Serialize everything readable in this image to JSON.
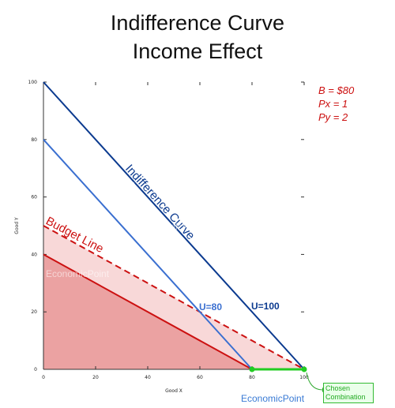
{
  "chart_data": {
    "type": "line",
    "title": "Indifference Curve",
    "subtitle": "Income Effect",
    "xlabel": "Good X",
    "ylabel": "Good Y",
    "xlim": [
      0,
      100
    ],
    "ylim": [
      0,
      100
    ],
    "xticks": [
      0,
      20,
      40,
      60,
      80,
      100
    ],
    "yticks": [
      0,
      20,
      40,
      60,
      80,
      100
    ],
    "series": [
      {
        "name": "Budget Line",
        "color": "#cc1111",
        "style": "solid",
        "x": [
          0,
          80
        ],
        "y": [
          40,
          0
        ]
      },
      {
        "name": "Budget Line",
        "color": "#cc1111",
        "style": "dashed",
        "x": [
          0,
          100
        ],
        "y": [
          50,
          0
        ]
      },
      {
        "name": "U=80",
        "color": "#3a6fd0",
        "style": "solid",
        "x": [
          0,
          80
        ],
        "y": [
          80,
          0
        ]
      },
      {
        "name": "U=100",
        "color": "#0b3a8f",
        "style": "solid",
        "x": [
          0,
          100
        ],
        "y": [
          100,
          0
        ]
      }
    ],
    "points": [
      {
        "x": 80,
        "y": 0,
        "color": "#22cc22"
      },
      {
        "x": 100,
        "y": 0,
        "color": "#22cc22"
      }
    ],
    "annotations": {
      "budget_line": "Budget Line",
      "indifference_curve": "Indifference Curve",
      "u80": "U=80",
      "u100": "U=100",
      "params": [
        "B = $80",
        "Px = 1",
        "Py = 2"
      ],
      "callout": [
        "Chosen",
        "Combination"
      ]
    }
  },
  "credit": {
    "part1": "Economic",
    "part2": "Point"
  },
  "watermarks": [
    "Economic",
    "EconomicPoint",
    "EconomicPoint"
  ]
}
